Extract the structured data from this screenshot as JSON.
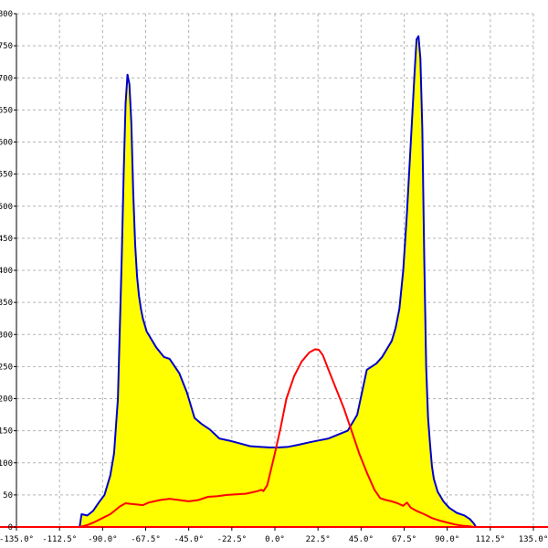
{
  "chart_data": {
    "type": "area",
    "title": "",
    "xlabel": "",
    "ylabel": "",
    "xlim": [
      -135,
      135
    ],
    "ylim": [
      0,
      800
    ],
    "grid": true,
    "x_ticks": [
      -135,
      -112.5,
      -90,
      -67.5,
      -45,
      -22.5,
      0,
      22.5,
      45,
      67.5,
      90,
      112.5,
      135
    ],
    "x_tick_labels": [
      "-135.0°",
      "-112.5°",
      "-90.0°",
      "-67.5°",
      "-45.0°",
      "-22.5°",
      "0.0°",
      "22.5°",
      "45.0°",
      "67.5°",
      "90.0°",
      "112.5°",
      "135.0°"
    ],
    "y_ticks": [
      0,
      50,
      100,
      150,
      200,
      250,
      300,
      350,
      400,
      450,
      500,
      550,
      600,
      650,
      700,
      750,
      800
    ],
    "y_tick_labels": [
      "0",
      "50",
      "100",
      "150",
      "200",
      "250",
      "300",
      "350",
      "400",
      "450",
      "500",
      "550",
      "600",
      "650",
      "700",
      "750",
      "800"
    ],
    "colors": {
      "fill": "#ffff00",
      "series_1": "#0000cc",
      "series_2": "#ff0000",
      "baseline": "#ff0000",
      "grid": "#b4b4b4"
    },
    "series": [
      {
        "style": "filled-area",
        "x": [
          -102,
          -101,
          -98,
          -95,
          -92,
          -89,
          -86,
          -84,
          -82,
          -80,
          -79,
          -78,
          -77,
          -76,
          -75,
          -74,
          -73,
          -72,
          -71,
          -70,
          -69,
          -68,
          -67,
          -65,
          -62,
          -58,
          -55,
          -50,
          -46,
          -44,
          -42,
          -38,
          -34,
          -29,
          -23,
          -18,
          -13,
          -8,
          -3,
          2,
          7,
          12,
          18,
          23,
          28,
          33,
          38,
          43,
          48,
          53,
          56,
          58,
          61,
          63,
          65,
          67,
          69,
          71,
          73,
          74,
          75,
          76,
          77,
          78,
          79,
          80,
          81,
          82,
          83,
          85,
          88,
          91,
          95,
          99,
          102,
          104,
          105
        ],
        "values": [
          0,
          20,
          18,
          25,
          38,
          50,
          80,
          115,
          200,
          420,
          550,
          660,
          705,
          690,
          630,
          520,
          440,
          390,
          360,
          340,
          325,
          315,
          305,
          295,
          280,
          265,
          262,
          240,
          210,
          190,
          170,
          160,
          152,
          138,
          134,
          130,
          126,
          125,
          124,
          124,
          125,
          128,
          132,
          135,
          138,
          144,
          150,
          175,
          245,
          255,
          265,
          275,
          290,
          310,
          340,
          400,
          490,
          600,
          710,
          760,
          765,
          730,
          620,
          420,
          250,
          170,
          130,
          95,
          75,
          55,
          40,
          30,
          22,
          18,
          12,
          5,
          0
        ]
      },
      {
        "style": "line",
        "x": [
          -102,
          -98,
          -94,
          -90,
          -86,
          -83,
          -81,
          -78,
          -75,
          -72,
          -69,
          -66,
          -63,
          -60,
          -55,
          -50,
          -45,
          -40,
          -35,
          -30,
          -25,
          -20,
          -15,
          -12,
          -9,
          -7,
          -6,
          -4,
          -2,
          0,
          3,
          6,
          10,
          14,
          18,
          21,
          23,
          25,
          28,
          32,
          36,
          40,
          44,
          48,
          52,
          55,
          58,
          61,
          64,
          67,
          69,
          71,
          74,
          78,
          82,
          86,
          90,
          94,
          98,
          102,
          104
        ],
        "values": [
          0,
          3,
          8,
          14,
          20,
          27,
          32,
          37,
          36,
          35,
          34,
          38,
          40,
          42,
          44,
          42,
          40,
          42,
          47,
          48,
          50,
          51,
          52,
          54,
          56,
          58,
          56,
          65,
          90,
          115,
          155,
          200,
          235,
          258,
          272,
          277,
          276,
          268,
          245,
          215,
          185,
          150,
          115,
          85,
          58,
          45,
          42,
          40,
          37,
          33,
          38,
          30,
          25,
          20,
          14,
          10,
          7,
          4,
          2,
          1,
          0
        ]
      }
    ]
  }
}
